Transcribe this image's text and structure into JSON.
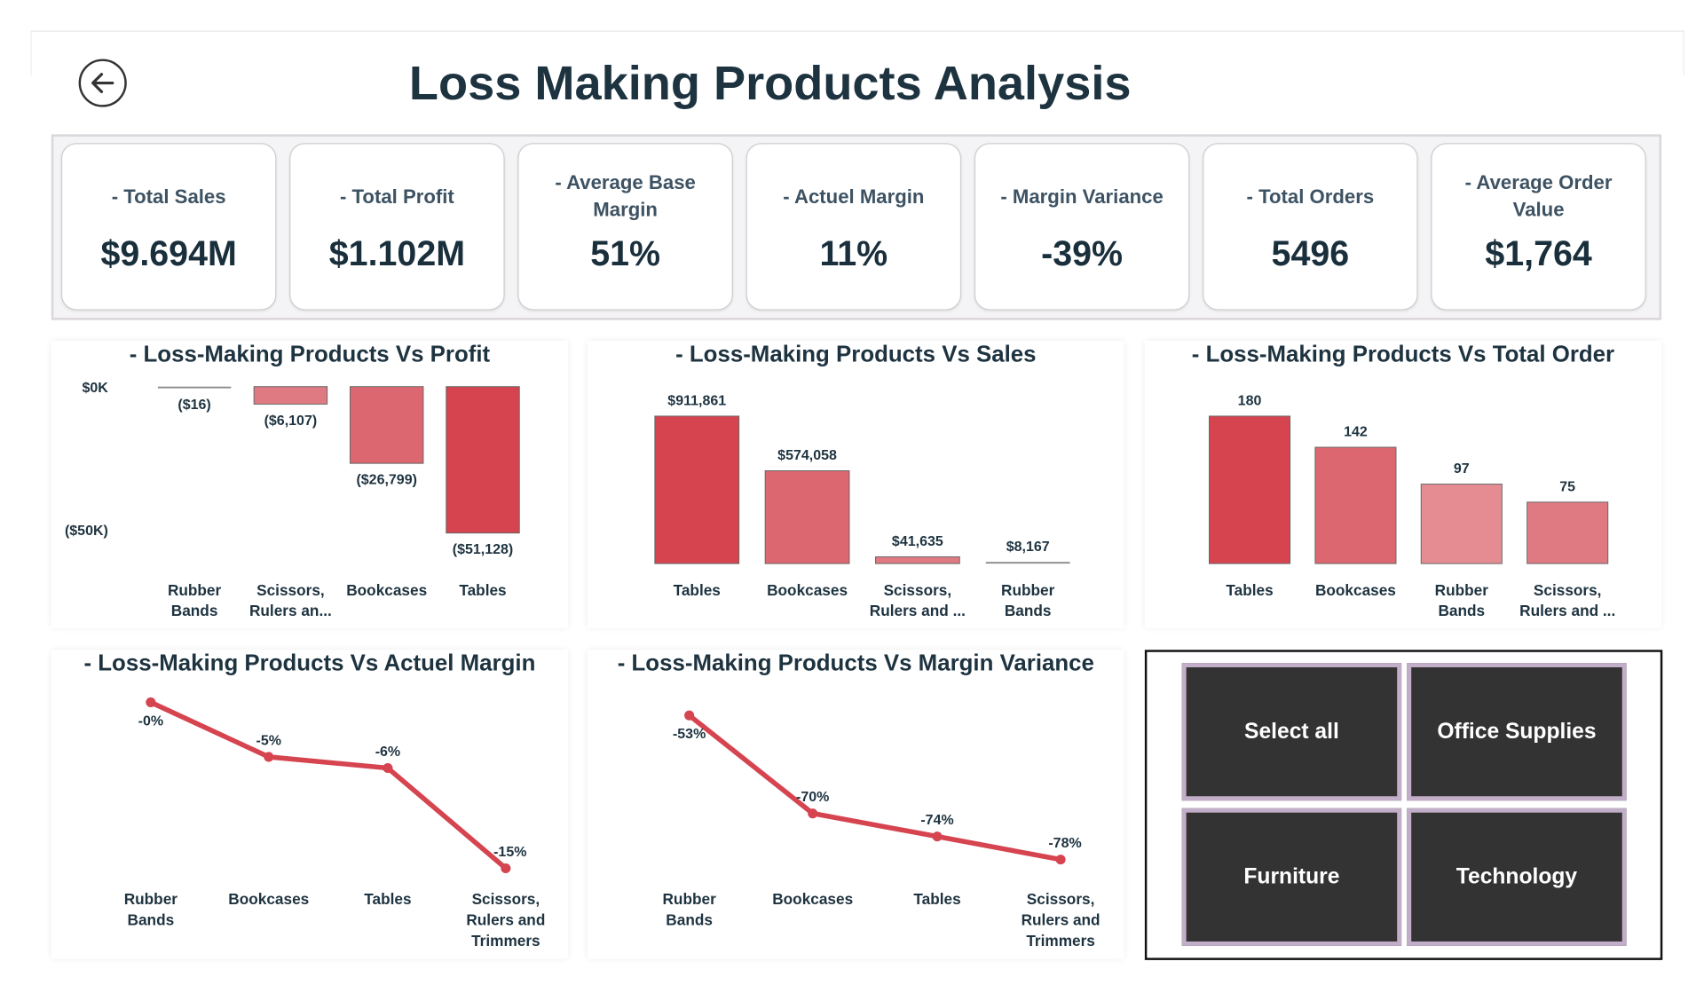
{
  "header": {
    "title": "Loss Making Products Analysis",
    "back_icon": "arrow-left-circle-icon"
  },
  "kpis": [
    {
      "label": "- Total Sales",
      "value": "$9.694M"
    },
    {
      "label": "- Total Profit",
      "value": "$1.102M"
    },
    {
      "label": "- Average Base Margin",
      "value": "51%"
    },
    {
      "label": "- Actuel Margin",
      "value": "11%"
    },
    {
      "label": "- Margin Variance",
      "value": "-39%"
    },
    {
      "label": "- Total Orders",
      "value": "5496"
    },
    {
      "label": "- Average Order Value",
      "value": "$1,764"
    }
  ],
  "chart_data": [
    {
      "type": "bar",
      "title": "- Loss-Making Products Vs Profit",
      "categories": [
        "Rubber Bands",
        "Scissors, Rulers an...",
        "Bookcases",
        "Tables"
      ],
      "category_lines": [
        [
          "Rubber",
          "Bands"
        ],
        [
          "Scissors,",
          "Rulers an..."
        ],
        [
          "Bookcases"
        ],
        [
          "Tables"
        ]
      ],
      "values": [
        -16,
        -6107,
        -26799,
        -51128
      ],
      "data_labels": [
        "($16)",
        "($6,107)",
        "($26,799)",
        "($51,128)"
      ],
      "y_ticks": [
        {
          "value": 0,
          "label": "$0K"
        },
        {
          "value": -50000,
          "label": "($50K)"
        }
      ],
      "colors": [
        "#8a8a8a",
        "#e07a82",
        "#dc6770",
        "#d5444f"
      ]
    },
    {
      "type": "bar",
      "title": "- Loss-Making Products Vs Sales",
      "categories": [
        "Tables",
        "Bookcases",
        "Scissors, Rulers and ...",
        "Rubber Bands"
      ],
      "category_lines": [
        [
          "Tables"
        ],
        [
          "Bookcases"
        ],
        [
          "Scissors,",
          "Rulers and ..."
        ],
        [
          "Rubber",
          "Bands"
        ]
      ],
      "values": [
        911861,
        574058,
        41635,
        8167
      ],
      "data_labels": [
        "$911,861",
        "$574,058",
        "$41,635",
        "$8,167"
      ],
      "colors": [
        "#d5444f",
        "#dc6770",
        "#e07a82",
        "#8a8a8a"
      ]
    },
    {
      "type": "bar",
      "title": "- Loss-Making Products Vs Total Order",
      "categories": [
        "Tables",
        "Bookcases",
        "Rubber Bands",
        "Scissors, Rulers and ..."
      ],
      "category_lines": [
        [
          "Tables"
        ],
        [
          "Bookcases"
        ],
        [
          "Rubber",
          "Bands"
        ],
        [
          "Scissors,",
          "Rulers and ..."
        ]
      ],
      "values": [
        180,
        142,
        97,
        75
      ],
      "data_labels": [
        "180",
        "142",
        "97",
        "75"
      ],
      "colors": [
        "#d5444f",
        "#dc6770",
        "#e58c93",
        "#e07a82"
      ]
    },
    {
      "type": "line",
      "title": "- Loss-Making Products Vs Actuel Margin",
      "categories": [
        "Rubber Bands",
        "Bookcases",
        "Tables",
        "Scissors, Rulers and Trimmers"
      ],
      "category_lines": [
        [
          "Rubber",
          "Bands"
        ],
        [
          "Bookcases"
        ],
        [
          "Tables"
        ],
        [
          "Scissors,",
          "Rulers and",
          "Trimmers"
        ]
      ],
      "values": [
        -0.1,
        -5,
        -6,
        -15
      ],
      "data_labels": [
        "-0%",
        "-5%",
        "-6%",
        "-15%"
      ],
      "color": "#d5444f"
    },
    {
      "type": "line",
      "title": "- Loss-Making Products Vs Margin Variance",
      "categories": [
        "Rubber Bands",
        "Bookcases",
        "Tables",
        "Scissors, Rulers and Trimmers"
      ],
      "category_lines": [
        [
          "Rubber",
          "Bands"
        ],
        [
          "Bookcases"
        ],
        [
          "Tables"
        ],
        [
          "Scissors,",
          "Rulers and",
          "Trimmers"
        ]
      ],
      "values": [
        -53,
        -70,
        -74,
        -78
      ],
      "data_labels": [
        "-53%",
        "-70%",
        "-74%",
        "-78%"
      ],
      "color": "#d5444f"
    }
  ],
  "slicer": {
    "options": [
      "Select all",
      "Office Supplies",
      "Furniture",
      "Technology"
    ]
  }
}
